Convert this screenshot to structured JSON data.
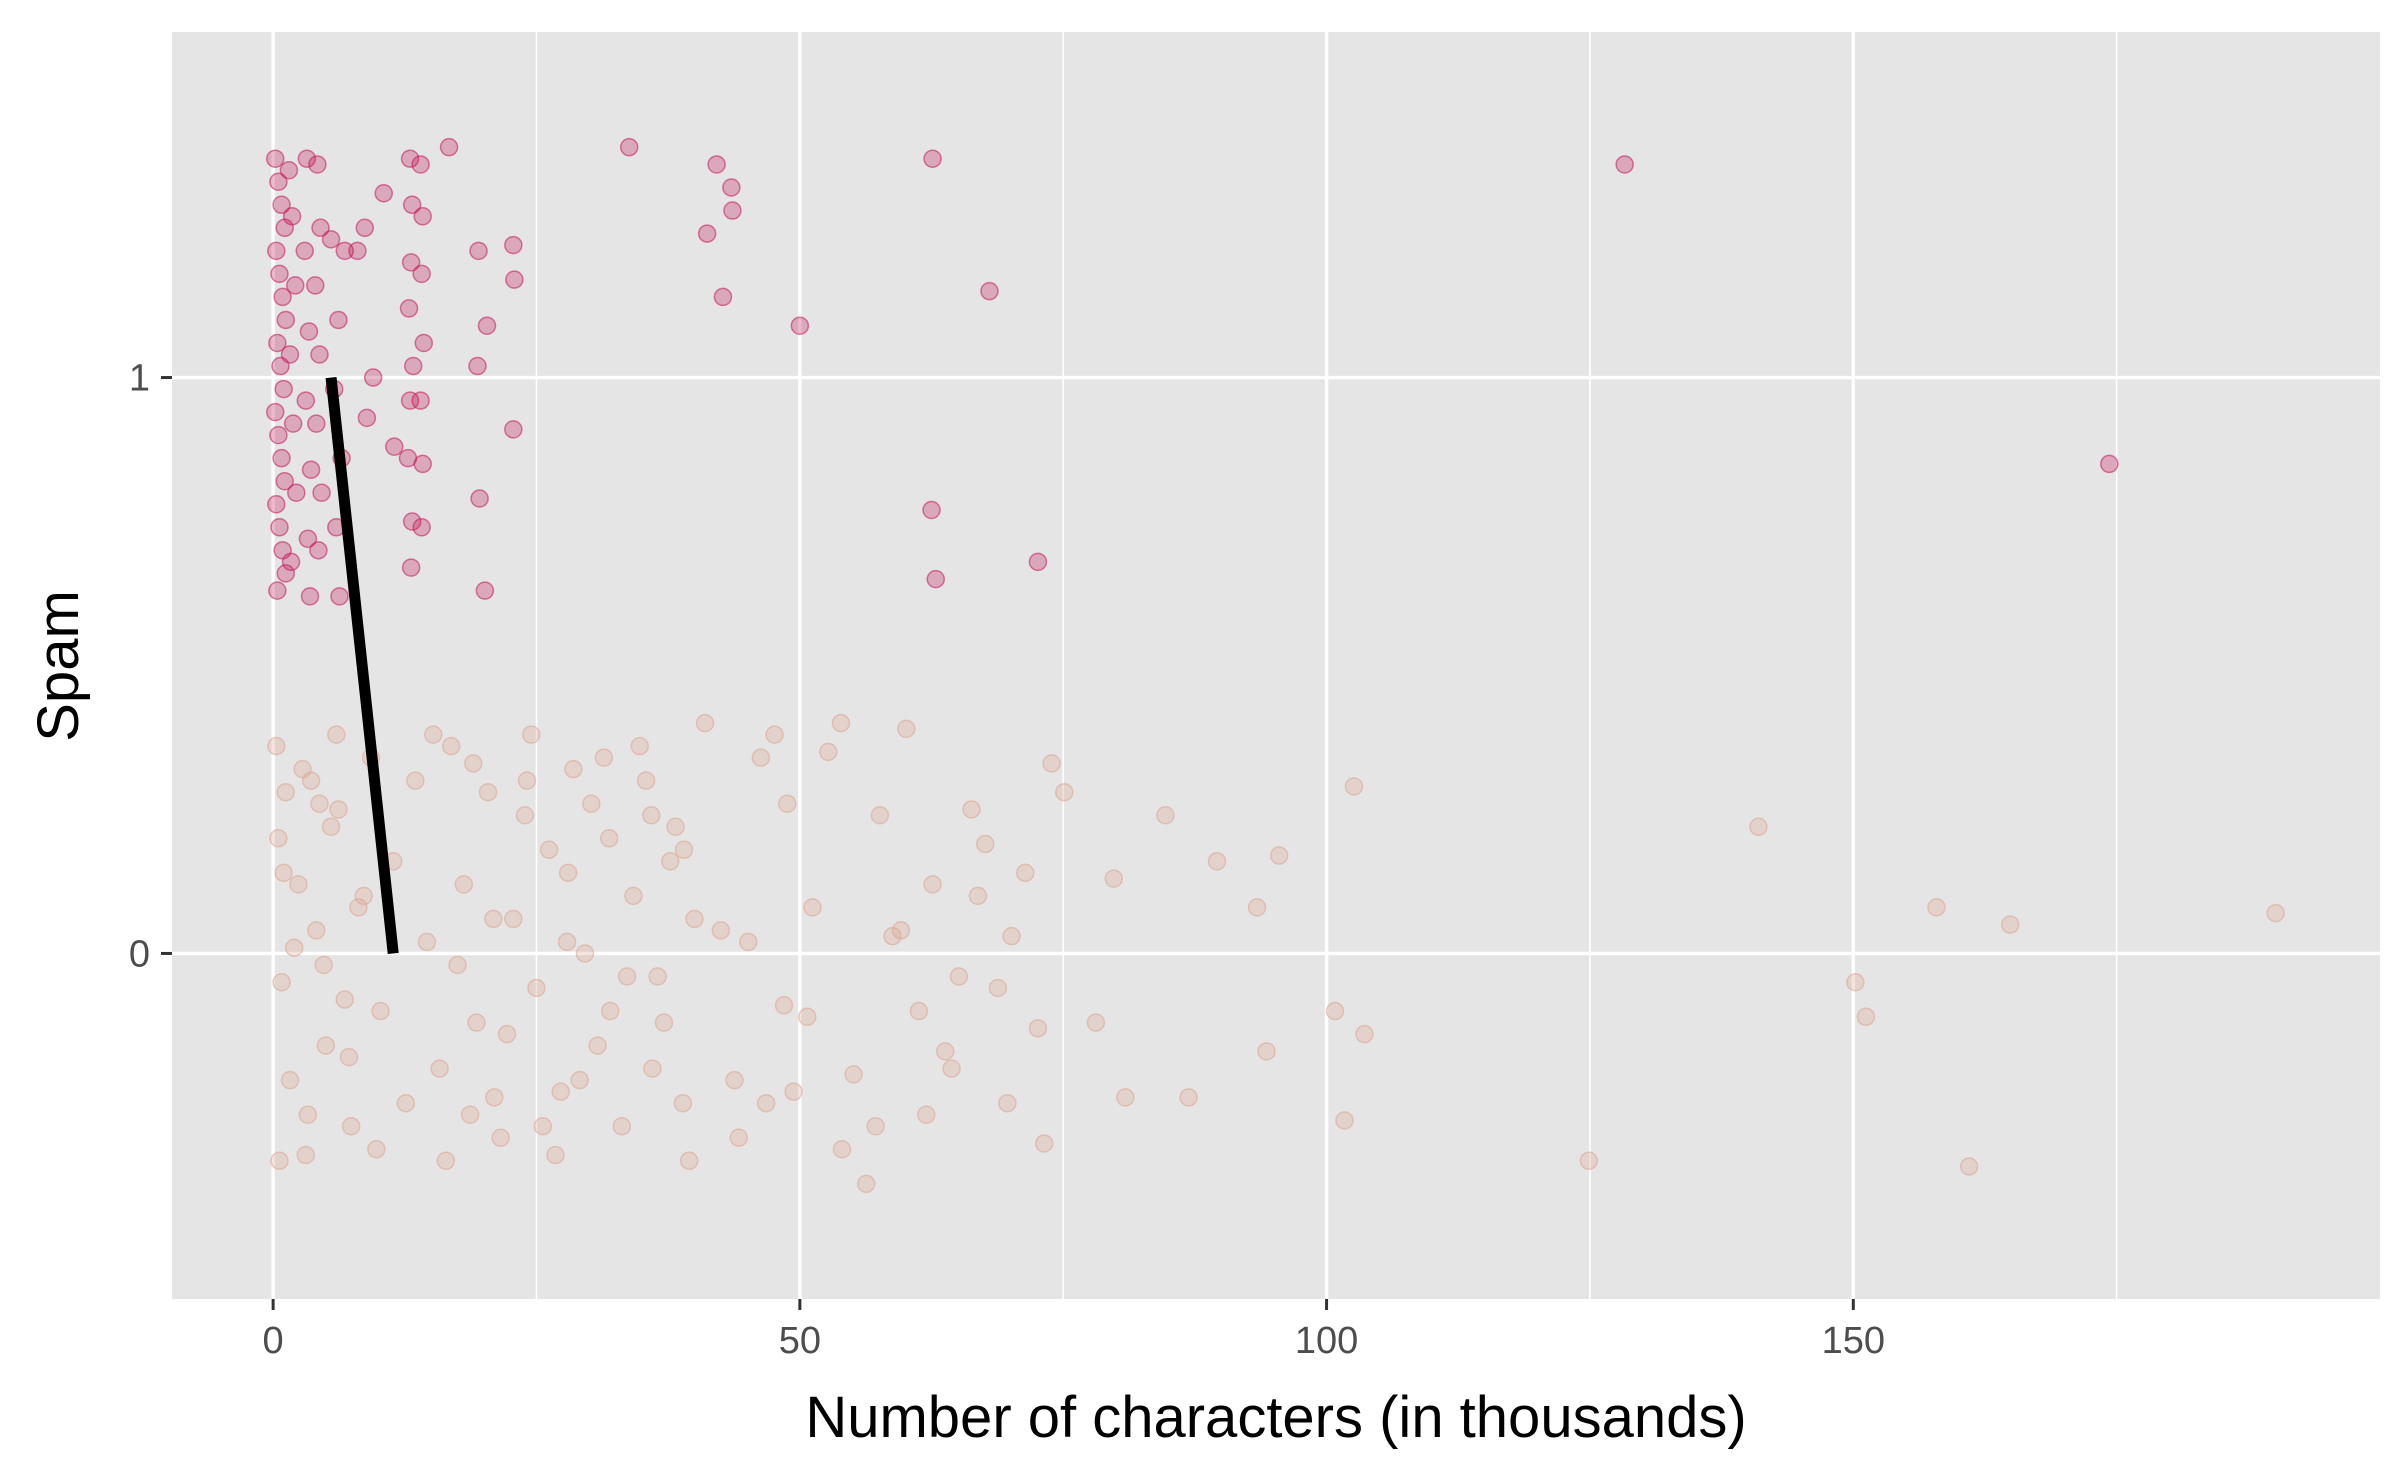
{
  "colors": {
    "panel": "#e5e5e5",
    "grid": "#ffffff",
    "spam": "#c2185b",
    "not_spam": "#dba58f",
    "line": "#000000",
    "tick_text": "#4d4d4d"
  },
  "chart_data": {
    "type": "scatter",
    "xlabel": "Number of characters (in thousands)",
    "ylabel": "Spam",
    "xlim": [
      -9.6,
      200
    ],
    "ylim": [
      -0.6,
      1.6
    ],
    "x_ticks": [
      0,
      50,
      100,
      150
    ],
    "y_ticks": [
      0,
      1
    ],
    "grid": true,
    "legend": "none",
    "jitter": 0.38,
    "series": [
      {
        "group": 1,
        "color_key": "spam",
        "points": [
          [
            0.2,
            1.38
          ],
          [
            0.5,
            1.34
          ],
          [
            0.8,
            1.3
          ],
          [
            1.1,
            1.26
          ],
          [
            0.3,
            1.22
          ],
          [
            0.6,
            1.18
          ],
          [
            0.9,
            1.14
          ],
          [
            1.2,
            1.1
          ],
          [
            0.4,
            1.06
          ],
          [
            0.7,
            1.02
          ],
          [
            1.0,
            0.98
          ],
          [
            0.2,
            0.94
          ],
          [
            0.5,
            0.9
          ],
          [
            0.8,
            0.86
          ],
          [
            1.1,
            0.82
          ],
          [
            0.3,
            0.78
          ],
          [
            0.6,
            0.74
          ],
          [
            0.9,
            0.7
          ],
          [
            1.2,
            0.66
          ],
          [
            0.4,
            0.63
          ],
          [
            1.5,
            1.36
          ],
          [
            1.8,
            1.28
          ],
          [
            2.1,
            1.16
          ],
          [
            1.6,
            1.04
          ],
          [
            1.9,
            0.92
          ],
          [
            2.2,
            0.8
          ],
          [
            1.7,
            0.68
          ],
          [
            3.2,
            1.38
          ],
          [
            3.0,
            1.22
          ],
          [
            3.4,
            1.08
          ],
          [
            3.1,
            0.96
          ],
          [
            3.6,
            0.84
          ],
          [
            3.3,
            0.72
          ],
          [
            3.5,
            0.62
          ],
          [
            4.2,
            1.37
          ],
          [
            4.5,
            1.26
          ],
          [
            4.0,
            1.16
          ],
          [
            4.4,
            1.04
          ],
          [
            4.1,
            0.92
          ],
          [
            4.6,
            0.8
          ],
          [
            4.3,
            0.7
          ],
          [
            5.5,
            1.24
          ],
          [
            6.2,
            1.1
          ],
          [
            6.8,
            1.22
          ],
          [
            5.8,
            0.98
          ],
          [
            6.5,
            0.86
          ],
          [
            6.0,
            0.74
          ],
          [
            6.3,
            0.62
          ],
          [
            8.0,
            1.22
          ],
          [
            8.7,
            1.26
          ],
          [
            9.5,
            1.0
          ],
          [
            8.9,
            0.93
          ],
          [
            10.5,
            1.32
          ],
          [
            11.5,
            0.88
          ],
          [
            13.0,
            1.38
          ],
          [
            13.2,
            1.3
          ],
          [
            13.1,
            1.2
          ],
          [
            12.9,
            1.12
          ],
          [
            13.3,
            1.02
          ],
          [
            13.0,
            0.96
          ],
          [
            12.8,
            0.86
          ],
          [
            13.2,
            0.75
          ],
          [
            13.1,
            0.67
          ],
          [
            14.0,
            1.37
          ],
          [
            14.2,
            1.28
          ],
          [
            14.1,
            1.18
          ],
          [
            14.3,
            1.06
          ],
          [
            14.0,
            0.96
          ],
          [
            14.2,
            0.85
          ],
          [
            14.1,
            0.74
          ],
          [
            16.7,
            1.4
          ],
          [
            19.5,
            1.22
          ],
          [
            20.3,
            1.09
          ],
          [
            19.4,
            1.02
          ],
          [
            19.6,
            0.79
          ],
          [
            20.1,
            0.63
          ],
          [
            22.8,
            1.23
          ],
          [
            22.9,
            1.17
          ],
          [
            22.8,
            0.91
          ],
          [
            33.8,
            1.4
          ],
          [
            41.2,
            1.25
          ],
          [
            42.1,
            1.37
          ],
          [
            42.7,
            1.14
          ],
          [
            43.5,
            1.33
          ],
          [
            43.6,
            1.29
          ],
          [
            50.0,
            1.09
          ],
          [
            62.6,
            1.38
          ],
          [
            62.5,
            0.77
          ],
          [
            62.9,
            0.65
          ],
          [
            68.0,
            1.15
          ],
          [
            72.6,
            0.68
          ],
          [
            128.3,
            1.37
          ],
          [
            174.3,
            0.85
          ]
        ]
      },
      {
        "group": 0,
        "color_key": "not_spam",
        "points": [
          [
            0.3,
            0.36
          ],
          [
            1.2,
            0.28
          ],
          [
            2.4,
            0.12
          ],
          [
            0.8,
            -0.05
          ],
          [
            1.6,
            -0.22
          ],
          [
            3.1,
            -0.35
          ],
          [
            0.5,
            0.2
          ],
          [
            2.8,
            0.32
          ],
          [
            4.1,
            0.04
          ],
          [
            5.0,
            -0.16
          ],
          [
            6.2,
            0.25
          ],
          [
            7.4,
            -0.3
          ],
          [
            8.1,
            0.08
          ],
          [
            9.3,
            0.34
          ],
          [
            10.2,
            -0.1
          ],
          [
            11.4,
            0.16
          ],
          [
            12.6,
            -0.26
          ],
          [
            3.6,
            0.3
          ],
          [
            4.8,
            -0.02
          ],
          [
            6.0,
            0.38
          ],
          [
            7.2,
            -0.18
          ],
          [
            8.6,
            0.1
          ],
          [
            9.8,
            -0.34
          ],
          [
            2.0,
            0.01
          ],
          [
            5.5,
            0.22
          ],
          [
            6.8,
            -0.08
          ],
          [
            1.0,
            0.14
          ],
          [
            3.3,
            -0.28
          ],
          [
            4.4,
            0.26
          ],
          [
            0.6,
            -0.36
          ],
          [
            13.5,
            0.3
          ],
          [
            14.6,
            0.02
          ],
          [
            15.8,
            -0.2
          ],
          [
            16.9,
            0.36
          ],
          [
            18.1,
            0.12
          ],
          [
            19.3,
            -0.12
          ],
          [
            20.4,
            0.28
          ],
          [
            21.6,
            -0.32
          ],
          [
            22.8,
            0.06
          ],
          [
            23.9,
            0.24
          ],
          [
            25.0,
            -0.06
          ],
          [
            26.2,
            0.18
          ],
          [
            27.3,
            -0.24
          ],
          [
            28.5,
            0.32
          ],
          [
            29.6,
            0.0
          ],
          [
            30.8,
            -0.16
          ],
          [
            31.9,
            0.2
          ],
          [
            33.1,
            -0.3
          ],
          [
            34.2,
            0.1
          ],
          [
            35.4,
            0.3
          ],
          [
            36.5,
            -0.04
          ],
          [
            37.7,
            0.16
          ],
          [
            38.9,
            -0.26
          ],
          [
            40.0,
            0.06
          ],
          [
            17.5,
            -0.02
          ],
          [
            19.0,
            0.33
          ],
          [
            21.0,
            -0.25
          ],
          [
            24.5,
            0.38
          ],
          [
            26.8,
            -0.35
          ],
          [
            28.0,
            0.14
          ],
          [
            30.2,
            0.26
          ],
          [
            32.0,
            -0.1
          ],
          [
            34.8,
            0.36
          ],
          [
            36.0,
            -0.2
          ],
          [
            38.2,
            0.22
          ],
          [
            39.5,
            -0.36
          ],
          [
            15.2,
            0.38
          ],
          [
            16.4,
            -0.36
          ],
          [
            18.7,
            -0.28
          ],
          [
            20.9,
            0.06
          ],
          [
            22.2,
            -0.14
          ],
          [
            24.1,
            0.3
          ],
          [
            25.6,
            -0.3
          ],
          [
            27.9,
            0.02
          ],
          [
            29.1,
            -0.22
          ],
          [
            31.4,
            0.34
          ],
          [
            33.6,
            -0.04
          ],
          [
            35.9,
            0.24
          ],
          [
            37.1,
            -0.12
          ],
          [
            39.0,
            0.18
          ],
          [
            41.0,
            0.4
          ],
          [
            42.5,
            0.04
          ],
          [
            43.8,
            -0.22
          ],
          [
            45.1,
            0.02
          ],
          [
            46.3,
            0.34
          ],
          [
            47.6,
            0.38
          ],
          [
            48.8,
            0.26
          ],
          [
            51.2,
            0.08
          ],
          [
            52.7,
            0.35
          ],
          [
            53.9,
            0.4
          ],
          [
            55.1,
            -0.21
          ],
          [
            56.3,
            -0.4
          ],
          [
            57.6,
            0.24
          ],
          [
            58.8,
            0.03
          ],
          [
            60.1,
            0.39
          ],
          [
            61.3,
            -0.1
          ],
          [
            62.6,
            0.12
          ],
          [
            63.8,
            -0.17
          ],
          [
            65.1,
            -0.04
          ],
          [
            66.3,
            0.25
          ],
          [
            67.6,
            0.19
          ],
          [
            68.8,
            -0.06
          ],
          [
            70.1,
            0.03
          ],
          [
            71.4,
            0.14
          ],
          [
            72.6,
            -0.13
          ],
          [
            73.9,
            0.33
          ],
          [
            75.1,
            0.28
          ],
          [
            78.1,
            -0.12
          ],
          [
            79.8,
            0.13
          ],
          [
            80.9,
            -0.25
          ],
          [
            84.7,
            0.24
          ],
          [
            86.9,
            -0.25
          ],
          [
            89.6,
            0.16
          ],
          [
            93.4,
            0.08
          ],
          [
            94.3,
            -0.17
          ],
          [
            95.5,
            0.17
          ],
          [
            100.8,
            -0.1
          ],
          [
            101.7,
            -0.29
          ],
          [
            103.6,
            -0.14
          ],
          [
            102.6,
            0.29
          ],
          [
            124.9,
            -0.36
          ],
          [
            141.0,
            0.22
          ],
          [
            150.2,
            -0.05
          ],
          [
            151.2,
            -0.11
          ],
          [
            157.9,
            0.08
          ],
          [
            161.0,
            -0.37
          ],
          [
            164.9,
            0.05
          ],
          [
            190.1,
            0.07
          ],
          [
            44.2,
            -0.32
          ],
          [
            46.8,
            -0.26
          ],
          [
            48.5,
            -0.09
          ],
          [
            49.4,
            -0.24
          ],
          [
            50.7,
            -0.11
          ],
          [
            54.0,
            -0.34
          ],
          [
            57.2,
            -0.3
          ],
          [
            59.6,
            0.04
          ],
          [
            62.0,
            -0.28
          ],
          [
            64.4,
            -0.2
          ],
          [
            66.9,
            0.1
          ],
          [
            69.7,
            -0.26
          ],
          [
            73.2,
            -0.33
          ]
        ]
      }
    ],
    "line": {
      "x": [
        5.5,
        11.4
      ],
      "y": [
        1,
        0
      ]
    }
  }
}
